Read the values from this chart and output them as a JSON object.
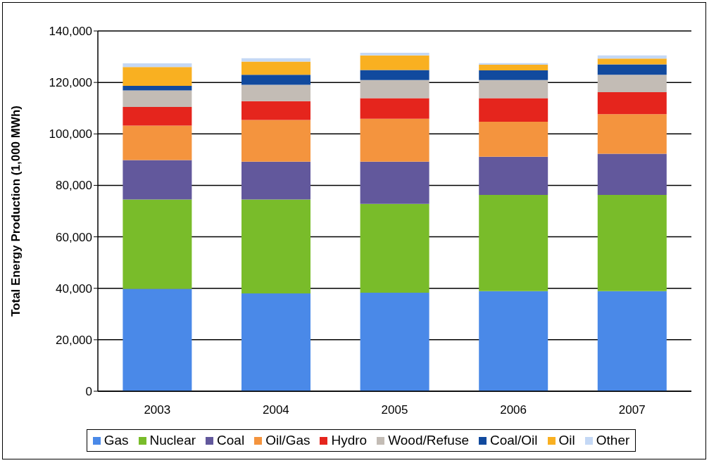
{
  "chart_data": {
    "type": "bar",
    "stacked": true,
    "ylabel": "Total Energy Production (1,000 MWh)",
    "categories": [
      "2003",
      "2004",
      "2005",
      "2006",
      "2007"
    ],
    "series": [
      {
        "name": "Gas",
        "color": "#4a89e8",
        "values": [
          39800,
          38000,
          38300,
          38900,
          38900
        ]
      },
      {
        "name": "Nuclear",
        "color": "#79bc2a",
        "values": [
          34700,
          36500,
          34500,
          37400,
          37400
        ]
      },
      {
        "name": "Coal",
        "color": "#62589c",
        "values": [
          15300,
          14700,
          16400,
          14800,
          16000
        ]
      },
      {
        "name": "Oil/Gas",
        "color": "#f4943e",
        "values": [
          13400,
          16200,
          16700,
          13600,
          15400
        ]
      },
      {
        "name": "Hydro",
        "color": "#e5251d",
        "values": [
          7300,
          7300,
          8000,
          9200,
          8500
        ]
      },
      {
        "name": "Wood/Refuse",
        "color": "#c3bcb5",
        "values": [
          6400,
          6400,
          7000,
          7000,
          6800
        ]
      },
      {
        "name": "Coal/Oil",
        "color": "#114a9e",
        "values": [
          1800,
          3900,
          3900,
          3800,
          4000
        ]
      },
      {
        "name": "Oil",
        "color": "#f9b021",
        "values": [
          7300,
          5100,
          5700,
          2200,
          2300
        ]
      },
      {
        "name": "Other",
        "color": "#c4d8f5",
        "values": [
          1400,
          1300,
          1000,
          600,
          1200
        ]
      }
    ],
    "ylim": [
      0,
      140000
    ],
    "yticks": [
      0,
      {
        "value": 20000,
        "label": "20,000"
      },
      {
        "value": 40000,
        "label": "40,000"
      },
      {
        "value": 60000,
        "label": "60,000"
      },
      {
        "value": 80000,
        "label": "80,000"
      },
      {
        "value": 100000,
        "label": "100,000"
      },
      {
        "value": 120000,
        "label": "120,000"
      },
      {
        "value": 140000,
        "label": "140,000"
      }
    ],
    "grid": "y",
    "legend": "bottom"
  }
}
